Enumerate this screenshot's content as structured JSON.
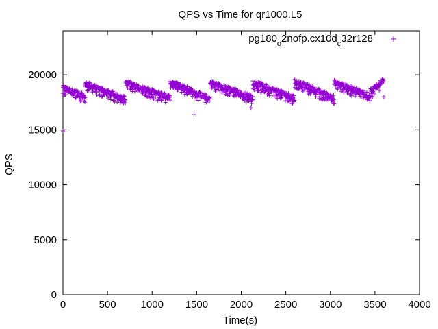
{
  "chart_data": {
    "type": "scatter",
    "title": "QPS vs Time for qr1000.L5",
    "xlabel": "Time(s)",
    "ylabel": "QPS",
    "xlim": [
      0,
      4000
    ],
    "ylim": [
      0,
      24000
    ],
    "xticks": [
      0,
      500,
      1000,
      1500,
      2000,
      2500,
      3000,
      3500,
      4000
    ],
    "yticks": [
      0,
      5000,
      10000,
      15000,
      20000
    ],
    "grid": false,
    "legend_position": "top-right",
    "marker": "+",
    "series": [
      {
        "name_parts": [
          "pg180",
          "o",
          "2nofp.cx10d",
          "c",
          "32r128"
        ],
        "color": "#9400d3",
        "segments": [
          {
            "x_start": 0,
            "x_end": 250,
            "y_start": 18800,
            "y_end": 18000
          },
          {
            "x_start": 250,
            "x_end": 700,
            "y_start": 19200,
            "y_end": 17800
          },
          {
            "x_start": 700,
            "x_end": 1200,
            "y_start": 19300,
            "y_end": 17900
          },
          {
            "x_start": 1200,
            "x_end": 1650,
            "y_start": 19400,
            "y_end": 17800
          },
          {
            "x_start": 1650,
            "x_end": 2130,
            "y_start": 19300,
            "y_end": 17900
          },
          {
            "x_start": 2130,
            "x_end": 2600,
            "y_start": 19300,
            "y_end": 17900
          },
          {
            "x_start": 2600,
            "x_end": 3040,
            "y_start": 19400,
            "y_end": 17900
          },
          {
            "x_start": 3040,
            "x_end": 3450,
            "y_start": 19300,
            "y_end": 18100
          },
          {
            "x_start": 3450,
            "x_end": 3600,
            "y_start": 18500,
            "y_end": 19600
          }
        ],
        "outliers": [
          {
            "x": 0,
            "y": 14900
          },
          {
            "x": 1470,
            "y": 16400
          },
          {
            "x": 2110,
            "y": 17000
          },
          {
            "x": 3600,
            "y": 18000
          }
        ]
      }
    ]
  }
}
